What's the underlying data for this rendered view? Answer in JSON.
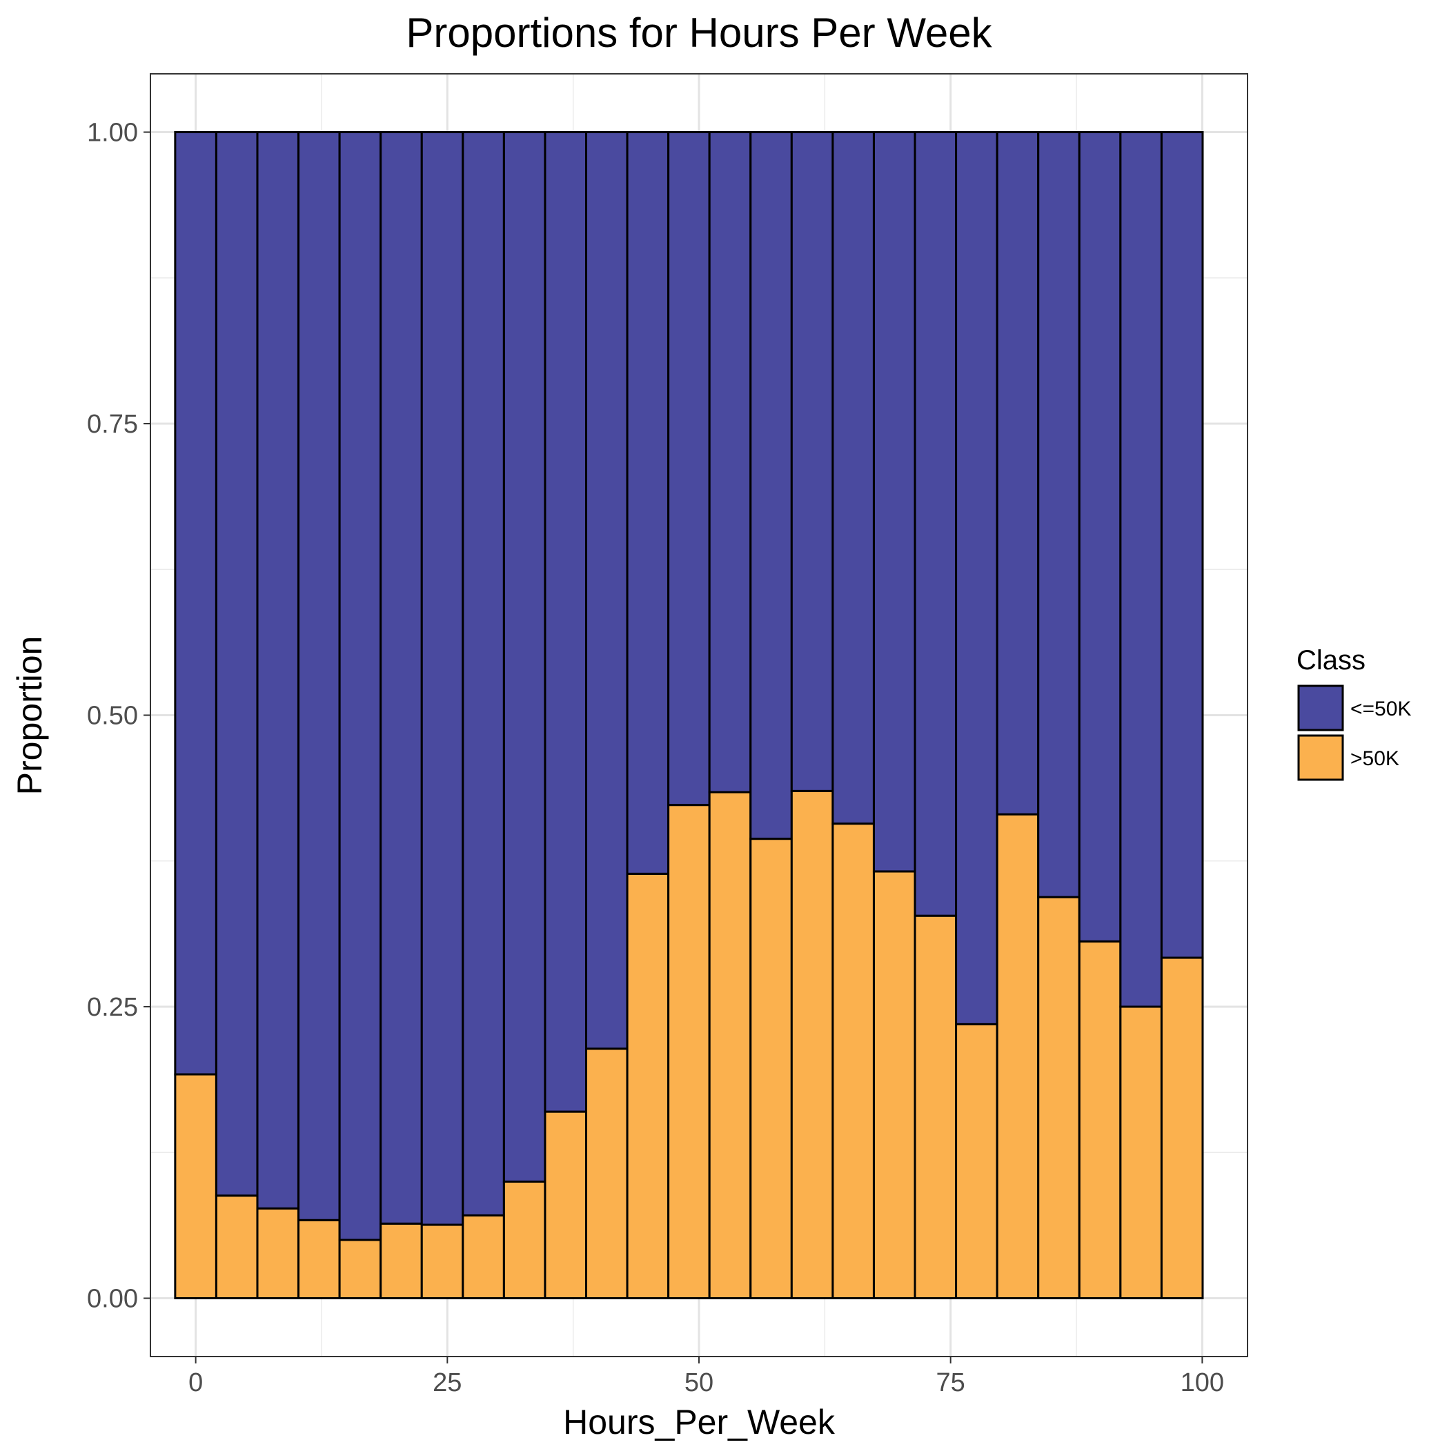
{
  "chart_data": {
    "type": "bar",
    "stacked": true,
    "title": "Proportions for Hours Per Week",
    "xlabel": "Hours_Per_Week",
    "ylabel": "Proportion",
    "xlim": [
      -4.5,
      104.5
    ],
    "ylim": [
      -0.05,
      1.05
    ],
    "x_ticks": [
      0,
      25,
      50,
      75,
      100
    ],
    "x_tick_labels": [
      "0",
      "25",
      "50",
      "75",
      "100"
    ],
    "y_ticks": [
      0,
      0.25,
      0.5,
      0.75,
      1.0
    ],
    "y_tick_labels": [
      "0.00",
      "0.25",
      "0.50",
      "0.75",
      "1.00"
    ],
    "bin_width": 4.083,
    "x": [
      0.0,
      4.083,
      8.167,
      12.25,
      16.333,
      20.417,
      24.5,
      28.583,
      32.667,
      36.75,
      40.833,
      44.917,
      49.0,
      53.083,
      57.167,
      61.25,
      65.333,
      69.417,
      73.5,
      77.583,
      81.667,
      85.75,
      89.833,
      93.917,
      98.0
    ],
    "series": [
      {
        "name": ">50K",
        "color": "#FBB14E",
        "values": [
          0.192,
          0.088,
          0.077,
          0.067,
          0.05,
          0.064,
          0.063,
          0.071,
          0.1,
          0.16,
          0.214,
          0.364,
          0.423,
          0.434,
          0.394,
          0.435,
          0.407,
          0.366,
          0.328,
          0.235,
          0.415,
          0.344,
          0.306,
          0.25,
          0.292
        ]
      },
      {
        "name": "<=50K",
        "color": "#4A4A9F",
        "values": [
          0.808,
          0.912,
          0.923,
          0.933,
          0.95,
          0.936,
          0.937,
          0.929,
          0.9,
          0.84,
          0.786,
          0.636,
          0.577,
          0.566,
          0.606,
          0.565,
          0.593,
          0.634,
          0.672,
          0.765,
          0.585,
          0.656,
          0.694,
          0.75,
          0.708
        ]
      }
    ],
    "grid": true,
    "legend": {
      "title": "Class",
      "position": "right",
      "entries": [
        {
          "label": "<=50K",
          "color": "#4A4A9F"
        },
        {
          "label": ">50K",
          "color": "#FBB14E"
        }
      ]
    }
  }
}
